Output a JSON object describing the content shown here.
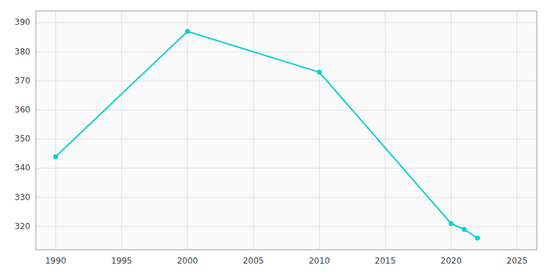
{
  "chart_data": {
    "type": "line",
    "x": [
      1990,
      2000,
      2010,
      2020,
      2021,
      2022
    ],
    "values": [
      344,
      387,
      373,
      321,
      319,
      316
    ],
    "color": "#00CED1",
    "marker": "circle",
    "xlim": [
      1988.5,
      2026.5
    ],
    "ylim": [
      312,
      394
    ],
    "xticks": [
      1990,
      1995,
      2000,
      2005,
      2010,
      2015,
      2020,
      2025
    ],
    "yticks": [
      320,
      330,
      340,
      350,
      360,
      370,
      380,
      390
    ],
    "grid": true
  }
}
